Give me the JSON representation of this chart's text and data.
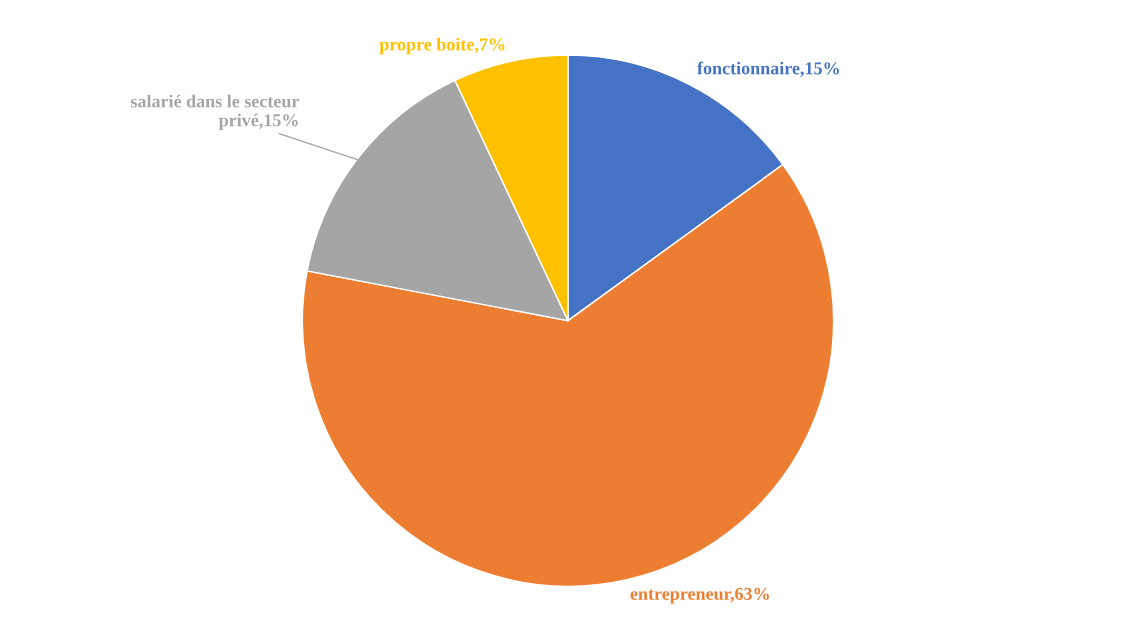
{
  "chart_data": {
    "type": "pie",
    "categories": [
      "fonctionnaire",
      "entrepreneur",
      "salarié dans le secteur privé",
      "propre boite"
    ],
    "values": [
      15,
      63,
      15,
      7
    ],
    "colors": [
      "#4472c4",
      "#ed7d31",
      "#a5a5a5",
      "#ffc000"
    ],
    "value_labels": [
      "15%",
      "63%",
      "15%",
      "7%"
    ]
  }
}
